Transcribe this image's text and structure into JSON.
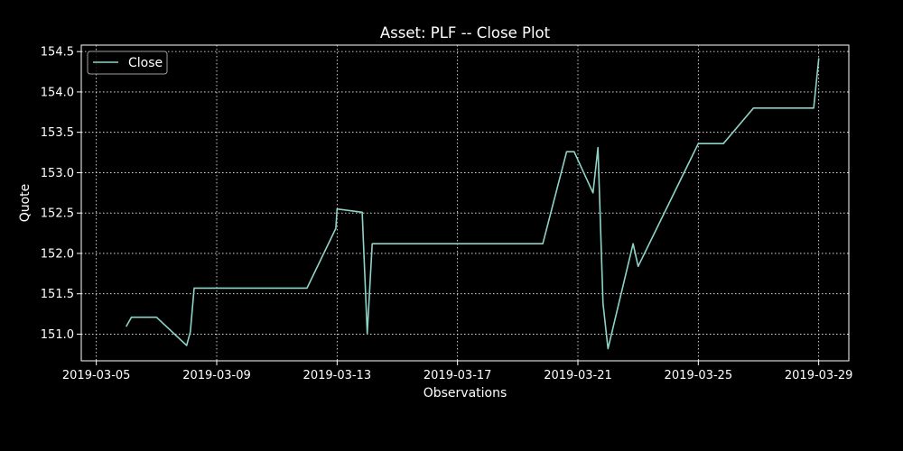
{
  "chart_data": {
    "type": "line",
    "title": "Asset: PLF -- Close Plot",
    "xlabel": "Observations",
    "ylabel": "Quote",
    "x_type": "date",
    "xlim": [
      "2019-03-04T12:00",
      "2019-03-30T00:00"
    ],
    "ylim": [
      150.67,
      154.58
    ],
    "xticks": [
      "2019-03-05",
      "2019-03-09",
      "2019-03-13",
      "2019-03-17",
      "2019-03-21",
      "2019-03-25",
      "2019-03-29"
    ],
    "yticks": [
      "151.0",
      "151.5",
      "152.0",
      "152.5",
      "153.0",
      "153.5",
      "154.0",
      "154.5"
    ],
    "grid": true,
    "grid_style": "dotted",
    "legend": {
      "position": "upper-left",
      "entries": [
        "Close"
      ]
    },
    "series": [
      {
        "name": "Close",
        "color": "#8dd3c7",
        "points": [
          [
            "2019-03-06T00:00",
            151.1
          ],
          [
            "2019-03-06T04:00",
            151.21
          ],
          [
            "2019-03-07T00:00",
            151.21
          ],
          [
            "2019-03-08T00:00",
            150.86
          ],
          [
            "2019-03-08T03:00",
            151.03
          ],
          [
            "2019-03-08T06:00",
            151.57
          ],
          [
            "2019-03-12T00:00",
            151.57
          ],
          [
            "2019-03-12T23:00",
            152.31
          ],
          [
            "2019-03-13T00:00",
            152.55
          ],
          [
            "2019-03-13T20:00",
            152.51
          ],
          [
            "2019-03-14T00:00",
            151.01
          ],
          [
            "2019-03-14T04:00",
            152.12
          ],
          [
            "2019-03-19T20:00",
            152.12
          ],
          [
            "2019-03-20T15:00",
            153.26
          ],
          [
            "2019-03-20T21:00",
            153.26
          ],
          [
            "2019-03-21T12:00",
            152.75
          ],
          [
            "2019-03-21T16:00",
            153.31
          ],
          [
            "2019-03-21T20:00",
            151.38
          ],
          [
            "2019-03-22T00:00",
            150.82
          ],
          [
            "2019-03-22T20:00",
            152.12
          ],
          [
            "2019-03-23T00:00",
            151.84
          ],
          [
            "2019-03-25T00:00",
            153.36
          ],
          [
            "2019-03-25T20:00",
            153.36
          ],
          [
            "2019-03-26T20:00",
            153.8
          ],
          [
            "2019-03-28T20:00",
            153.8
          ],
          [
            "2019-03-29T00:00",
            154.41
          ]
        ]
      }
    ]
  }
}
